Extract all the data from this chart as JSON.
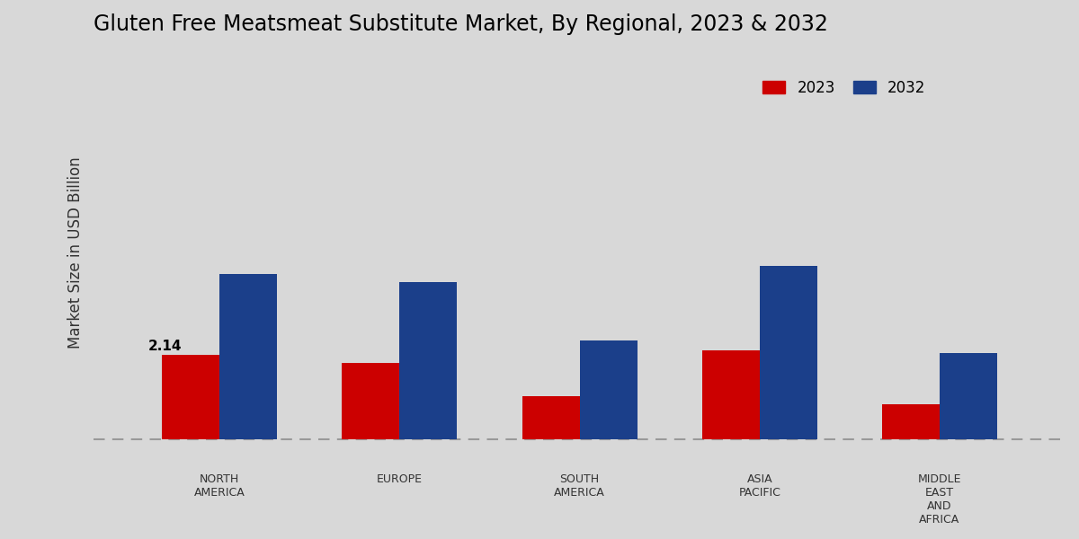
{
  "title": "Gluten Free Meatsmeat Substitute Market, By Regional, 2023 & 2032",
  "ylabel": "Market Size in USD Billion",
  "categories": [
    "NORTH\nAMERICA",
    "EUROPE",
    "SOUTH\nAMERICA",
    "ASIA\nPACIFIC",
    "MIDDLE\nEAST\nAND\nAFRICA"
  ],
  "values_2023": [
    2.14,
    1.95,
    1.1,
    2.25,
    0.9
  ],
  "values_2032": [
    4.2,
    4.0,
    2.5,
    4.4,
    2.2
  ],
  "color_2023": "#cc0000",
  "color_2032": "#1b3f8a",
  "annotation_label": "2.14",
  "annotation_region_idx": 0,
  "background_color_top": "#d0d0d0",
  "background_color_bottom": "#e8e8e8",
  "legend_labels": [
    "2023",
    "2032"
  ],
  "bar_width": 0.32,
  "ylim_min": -0.5,
  "ylim_max": 10.0,
  "dashed_line_y": 0,
  "title_fontsize": 17,
  "axis_label_fontsize": 12,
  "tick_label_fontsize": 9,
  "legend_fontsize": 12
}
